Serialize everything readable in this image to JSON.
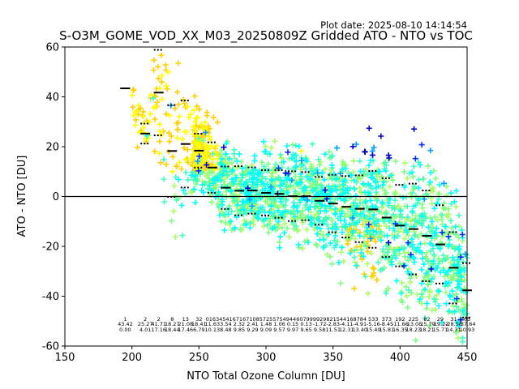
{
  "chart_data": {
    "type": "scatter",
    "title": "S-O3M_GOME_VOD_XX_M03_20250809Z Gridded ATO - NTO vs TOC",
    "plot_date": "Plot date: 2025-08-10 14:14:54",
    "xlabel": "NTO Total Ozone Column [DU]",
    "ylabel": "ATO - NTO [DU]",
    "xlim": [
      150,
      450
    ],
    "ylim": [
      -60,
      60
    ],
    "xticks": [
      150,
      200,
      250,
      300,
      350,
      400,
      450
    ],
    "yticks": [
      -60,
      -40,
      -20,
      0,
      20,
      40,
      60
    ],
    "grid": false,
    "reference_line_y": 0,
    "scatter_colors": [
      "#ffd000",
      "#ffff00",
      "#aaff66",
      "#80ff80",
      "#40ffc0",
      "#00ffff",
      "#00a0ff",
      "#0030ff",
      "#0000cc"
    ],
    "bins": {
      "x": [
        195,
        210,
        220,
        230,
        240,
        250,
        260,
        270,
        280,
        290,
        300,
        310,
        320,
        330,
        340,
        350,
        360,
        370,
        380,
        390,
        400,
        410,
        420,
        430,
        440,
        450
      ],
      "mean": [
        43.42,
        25.27,
        41.71,
        18.27,
        21.08,
        18.41,
        11.63,
        3.54,
        2.32,
        2.41,
        1.48,
        1.06,
        0.15,
        0.13,
        -1.72,
        -2.83,
        -4.11,
        -4.91,
        -5.16,
        -8.45,
        -11.66,
        -13.05,
        -15.79,
        -19.22,
        -28.58,
        -37.64
      ],
      "std": [
        0.0,
        4.01,
        17.16,
        18.44,
        17.46,
        6.79,
        10.13,
        8.48,
        9.85,
        9.29,
        9.09,
        9.57,
        9.97,
        9.65,
        9.58,
        11.51,
        12.31,
        13.4,
        15.4,
        15.81,
        16.35,
        18.23,
        18.21,
        15.71,
        14.31,
        10.93
      ],
      "count": [
        "1",
        "2",
        "2",
        "8",
        "13",
        "32",
        "0163",
        "4541",
        "6716",
        "7108",
        "5725",
        "5754",
        "9446",
        "0799",
        "9929",
        "8215",
        "4416",
        "8784",
        "533",
        "373",
        "192",
        "225",
        "82",
        "29",
        "31",
        "65"
      ],
      "mean_text": [
        "43.42",
        "25.27",
        "41.71",
        "18.27",
        "21.08",
        "18.41",
        "11.63",
        "3.54",
        "2.32",
        "2.41",
        "1.48",
        "1.06",
        "0.15",
        "0.13",
        "-1.72",
        "-2.83",
        "-4.11",
        "-4.91",
        "-5.16",
        "-8.45",
        "-11.66",
        "-13.05",
        "-15.79",
        "-19.22",
        "-28.58",
        "-37.64"
      ],
      "std_text": [
        "0.00",
        "4.01",
        "17.16",
        "18.44",
        "17.46",
        "6.79",
        "10.13",
        "8.48",
        "9.85",
        "9.29",
        "9.09",
        "9.57",
        "9.97",
        "9.65",
        "9.58",
        "11.51",
        "12.31",
        "13.40",
        "15.40",
        "15.81",
        "16.35",
        "18.23",
        "18.21",
        "15.71",
        "14.31",
        "10.93"
      ]
    }
  }
}
